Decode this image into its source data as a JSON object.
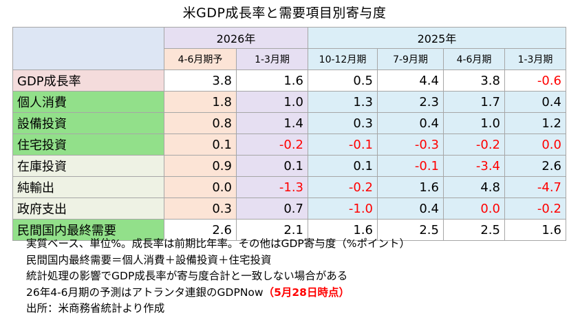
{
  "title": "米GDP成長率と需要項目別寄与度",
  "header": {
    "years": [
      "2026年",
      "2025年"
    ],
    "quarters": [
      "4-6月期予",
      "1-3月期",
      "10-12月期",
      "7-9月期",
      "4-6月期",
      "1-3月期"
    ]
  },
  "rows": [
    {
      "label": "GDP成長率",
      "values": [
        "3.8",
        "1.6",
        "0.5",
        "4.4",
        "3.8",
        "-0.6"
      ]
    },
    {
      "label": "個人消費",
      "values": [
        "1.8",
        "1.0",
        "1.3",
        "2.3",
        "1.7",
        "0.4"
      ]
    },
    {
      "label": "設備投資",
      "values": [
        "0.8",
        "1.4",
        "0.3",
        "0.4",
        "1.0",
        "1.2"
      ]
    },
    {
      "label": "住宅投資",
      "values": [
        "0.1",
        "-0.2",
        "-0.1",
        "-0.3",
        "-0.2",
        "0.0"
      ]
    },
    {
      "label": "在庫投資",
      "values": [
        "0.9",
        "0.1",
        "0.1",
        "-0.1",
        "-3.4",
        "2.6"
      ]
    },
    {
      "label": "純輸出",
      "values": [
        "0.0",
        "-1.3",
        "-0.2",
        "1.6",
        "4.8",
        "-4.7"
      ]
    },
    {
      "label": "政府支出",
      "values": [
        "0.3",
        "0.7",
        "-1.0",
        "0.4",
        "0.0",
        "-0.2"
      ]
    },
    {
      "label": "民間国内最終需要",
      "values": [
        "2.6",
        "2.1",
        "1.6",
        "2.5",
        "2.5",
        "1.6"
      ]
    }
  ],
  "red_cells": [
    [
      0,
      5
    ],
    [
      3,
      1
    ],
    [
      3,
      2
    ],
    [
      3,
      3
    ],
    [
      3,
      4
    ],
    [
      3,
      5
    ],
    [
      4,
      3
    ],
    [
      4,
      4
    ],
    [
      5,
      1
    ],
    [
      5,
      2
    ],
    [
      5,
      5
    ],
    [
      6,
      2
    ],
    [
      6,
      4
    ],
    [
      6,
      5
    ]
  ],
  "notes": {
    "line1": "実質ベース、単位%。成長率は前期比年率。その他はGDP寄与度（%ポイント）",
    "line2": "民間国内最終需要＝個人消費＋設備投資＋住宅投資",
    "line3": "統計処理の影響でGDP成長率が寄与度合計と一致しない場合がある",
    "line4_prefix": "26年4-6月期の予測はアトランタ連銀のGDPNow",
    "line4_highlight": "（5月28日時点）",
    "line5": "出所：米商務省統計より作成"
  },
  "colors": {
    "negative": "#ff0000",
    "green_label": "#92e08a",
    "pred_col": "#fce4d6",
    "q1_col": "#e6dff2",
    "y2025_col": "#dbeef7"
  }
}
